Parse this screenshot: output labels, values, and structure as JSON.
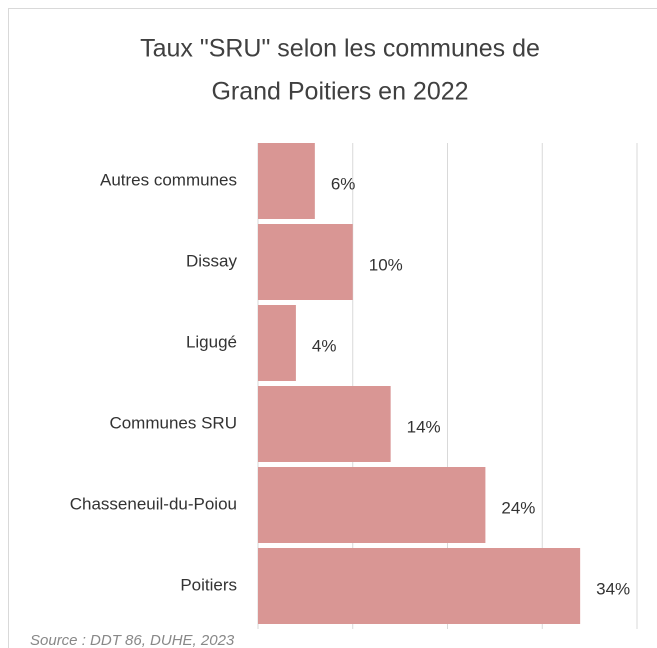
{
  "chart_data": {
    "type": "bar",
    "orientation": "horizontal",
    "title": [
      "Taux \"SRU\" selon les communes de",
      "Grand Poitiers en 2022"
    ],
    "categories": [
      "Autres communes",
      "Dissay",
      "Ligugé",
      "Communes SRU",
      "Chasseneuil-du-Poiou",
      "Poitiers"
    ],
    "values": [
      6,
      10,
      4,
      14,
      24,
      34
    ],
    "value_labels": [
      "6%",
      "10%",
      "4%",
      "14%",
      "24%",
      "34%"
    ],
    "color": "#d99694",
    "xlim": [
      0,
      40
    ],
    "xticks": [
      0,
      10,
      20,
      30,
      40
    ],
    "grid": true,
    "source": "Source : DDT 86, DUHE, 2023"
  }
}
